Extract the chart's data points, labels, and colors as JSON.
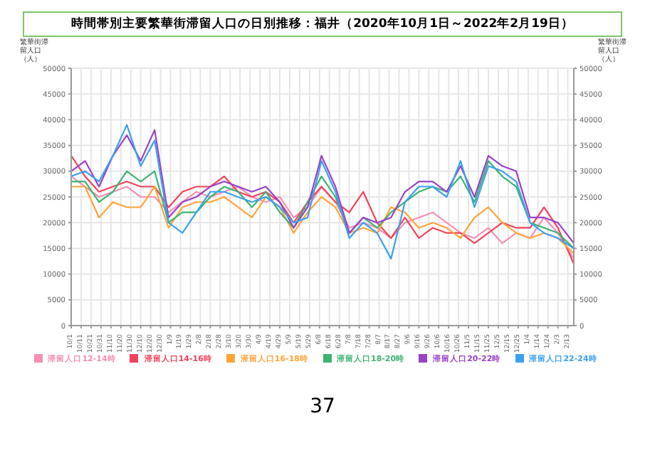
{
  "chart_data": {
    "type": "line",
    "title": "時間帯別主要繁華街滞留人口の日別推移：福井（2020年10月1日～2022年2月19日）",
    "ylabel": "繁華街滞留人口（人）",
    "y2label": "繁華街滞留人口（人）",
    "annotations": [
      "37"
    ],
    "x": [
      "2020-10-01",
      "2020-10-15",
      "2020-10-29",
      "2020-11-12",
      "2020-11-26",
      "2020-12-10",
      "2020-12-24",
      "2021-01-07",
      "2021-01-21",
      "2021-02-04",
      "2021-02-18",
      "2021-03-04",
      "2021-03-18",
      "2021-04-01",
      "2021-04-15",
      "2021-04-29",
      "2021-05-13",
      "2021-05-27",
      "2021-06-10",
      "2021-06-24",
      "2021-07-08",
      "2021-07-22",
      "2021-08-05",
      "2021-08-19",
      "2021-09-02",
      "2021-09-16",
      "2021-09-30",
      "2021-10-14",
      "2021-10-28",
      "2021-11-11",
      "2021-11-25",
      "2021-12-09",
      "2021-12-23",
      "2022-01-06",
      "2022-01-20",
      "2022-02-03",
      "2022-02-19"
    ],
    "series": [
      {
        "name": "滞留人口12-14時",
        "color": "#f48fb1",
        "values": [
          29000,
          27000,
          25000,
          26000,
          27000,
          25000,
          25000,
          22000,
          24000,
          26000,
          25000,
          26000,
          27000,
          25000,
          24000,
          25000,
          21000,
          23000,
          27000,
          24000,
          19000,
          20000,
          19000,
          17000,
          20000,
          21000,
          22000,
          20000,
          18000,
          17000,
          19000,
          16000,
          18000,
          17000,
          21000,
          18000,
          13000
        ]
      },
      {
        "name": "滞留人口14-16時",
        "color": "#f0435a",
        "values": [
          33000,
          29000,
          26000,
          27000,
          28000,
          27000,
          27000,
          23000,
          26000,
          27000,
          27000,
          29000,
          26000,
          25000,
          26000,
          24000,
          20000,
          24000,
          27000,
          24000,
          22000,
          26000,
          20000,
          17000,
          21000,
          17000,
          19000,
          18000,
          18000,
          16000,
          18000,
          20000,
          19000,
          19000,
          23000,
          19000,
          12000
        ]
      },
      {
        "name": "滞留人口16-18時",
        "color": "#ffa43a",
        "values": [
          27000,
          27000,
          21000,
          24000,
          23000,
          23000,
          27000,
          19000,
          23000,
          24000,
          24000,
          25000,
          23000,
          21000,
          25000,
          23000,
          18000,
          22000,
          25000,
          23000,
          18000,
          19000,
          18000,
          23000,
          22000,
          19000,
          20000,
          19000,
          17000,
          21000,
          23000,
          20000,
          18000,
          17000,
          18000,
          17000,
          14000
        ]
      },
      {
        "name": "滞留人口18-20時",
        "color": "#3cb371",
        "values": [
          28000,
          28000,
          24000,
          26000,
          30000,
          28000,
          30000,
          20000,
          22000,
          22000,
          25000,
          27000,
          26000,
          23000,
          26000,
          22000,
          19000,
          24000,
          29000,
          25000,
          18000,
          21000,
          19000,
          22000,
          24000,
          26000,
          27000,
          26000,
          29000,
          24000,
          32000,
          29000,
          27000,
          20000,
          19000,
          18000,
          15000
        ]
      },
      {
        "name": "滞留人口20-22時",
        "color": "#9b40c8",
        "values": [
          30000,
          32000,
          27000,
          33000,
          37000,
          32000,
          38000,
          21000,
          24000,
          25000,
          27000,
          28000,
          27000,
          26000,
          27000,
          24000,
          19000,
          23000,
          33000,
          27000,
          18000,
          21000,
          20000,
          21000,
          26000,
          28000,
          28000,
          26000,
          31000,
          25000,
          33000,
          31000,
          30000,
          21000,
          21000,
          20000,
          16000
        ]
      },
      {
        "name": "滞留人口22-24時",
        "color": "#3aa0f0",
        "values": [
          29000,
          30000,
          28000,
          33000,
          39000,
          31000,
          36000,
          20000,
          18000,
          22000,
          26000,
          26000,
          25000,
          24000,
          25000,
          23000,
          20000,
          21000,
          32000,
          26000,
          17000,
          20000,
          18000,
          13000,
          24000,
          27000,
          27000,
          25000,
          32000,
          23000,
          31000,
          30000,
          28000,
          20000,
          18000,
          17000,
          15000
        ]
      }
    ],
    "xlim": [
      "2020-10-01",
      "2022-02-19"
    ],
    "xticks": [
      {
        "value": "2020-10-01",
        "label": "10/1"
      },
      {
        "value": "2020-10-11",
        "label": "10/11"
      },
      {
        "value": "2020-10-21",
        "label": "10/21"
      },
      {
        "value": "2020-10-31",
        "label": "10/31"
      },
      {
        "value": "2020-11-10",
        "label": "11/10"
      },
      {
        "value": "2020-11-20",
        "label": "11/20"
      },
      {
        "value": "2020-11-30",
        "label": "11/30"
      },
      {
        "value": "2020-12-10",
        "label": "12/10"
      },
      {
        "value": "2020-12-20",
        "label": "12/20"
      },
      {
        "value": "2020-12-30",
        "label": "12/30"
      },
      {
        "value": "2021-01-09",
        "label": "1/9"
      },
      {
        "value": "2021-01-19",
        "label": "1/19"
      },
      {
        "value": "2021-01-29",
        "label": "1/29"
      },
      {
        "value": "2021-02-08",
        "label": "2/8"
      },
      {
        "value": "2021-02-18",
        "label": "2/18"
      },
      {
        "value": "2021-02-28",
        "label": "2/28"
      },
      {
        "value": "2021-03-10",
        "label": "3/10"
      },
      {
        "value": "2021-03-20",
        "label": "3/20"
      },
      {
        "value": "2021-03-30",
        "label": "3/30"
      },
      {
        "value": "2021-04-09",
        "label": "4/9"
      },
      {
        "value": "2021-04-19",
        "label": "4/19"
      },
      {
        "value": "2021-04-29",
        "label": "4/29"
      },
      {
        "value": "2021-05-09",
        "label": "5/9"
      },
      {
        "value": "2021-05-19",
        "label": "5/19"
      },
      {
        "value": "2021-05-29",
        "label": "5/29"
      },
      {
        "value": "2021-06-08",
        "label": "6/8"
      },
      {
        "value": "2021-06-18",
        "label": "6/18"
      },
      {
        "value": "2021-06-28",
        "label": "6/28"
      },
      {
        "value": "2021-07-08",
        "label": "7/8"
      },
      {
        "value": "2021-07-18",
        "label": "7/18"
      },
      {
        "value": "2021-07-28",
        "label": "7/28"
      },
      {
        "value": "2021-08-07",
        "label": "8/7"
      },
      {
        "value": "2021-08-17",
        "label": "8/17"
      },
      {
        "value": "2021-08-27",
        "label": "8/27"
      },
      {
        "value": "2021-09-06",
        "label": "9/6"
      },
      {
        "value": "2021-09-16",
        "label": "9/16"
      },
      {
        "value": "2021-09-26",
        "label": "9/26"
      },
      {
        "value": "2021-10-06",
        "label": "10/6"
      },
      {
        "value": "2021-10-16",
        "label": "10/16"
      },
      {
        "value": "2021-10-26",
        "label": "10/26"
      },
      {
        "value": "2021-11-05",
        "label": "11/5"
      },
      {
        "value": "2021-11-15",
        "label": "11/15"
      },
      {
        "value": "2021-11-25",
        "label": "11/25"
      },
      {
        "value": "2021-12-05",
        "label": "12/5"
      },
      {
        "value": "2021-12-15",
        "label": "12/15"
      },
      {
        "value": "2021-12-25",
        "label": "12/25"
      },
      {
        "value": "2022-01-04",
        "label": "1/4"
      },
      {
        "value": "2022-01-14",
        "label": "1/14"
      },
      {
        "value": "2022-01-24",
        "label": "1/24"
      },
      {
        "value": "2022-02-03",
        "label": "2/3"
      },
      {
        "value": "2022-02-13",
        "label": "2/13"
      }
    ],
    "ylim": [
      0,
      50000
    ],
    "yticks": [
      0,
      5000,
      10000,
      15000,
      20000,
      25000,
      30000,
      35000,
      40000,
      45000,
      50000
    ],
    "y2lim": [
      0,
      50000
    ],
    "y2ticks": [
      0,
      5000,
      10000,
      15000,
      20000,
      25000,
      30000,
      35000,
      40000,
      45000,
      50000
    ],
    "grid": true,
    "legend": "bottom",
    "marker": "none",
    "line_style": "solid"
  }
}
